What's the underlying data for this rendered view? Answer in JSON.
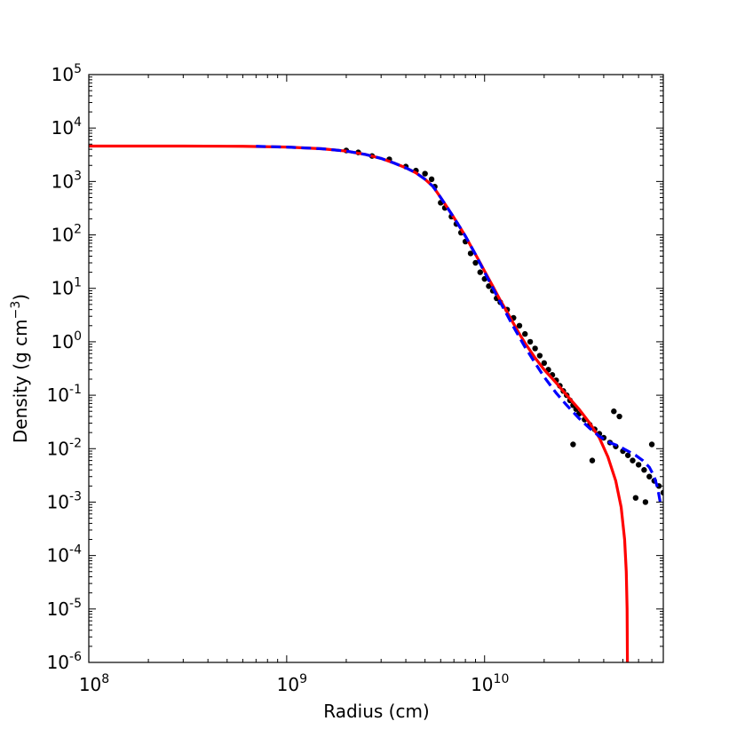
{
  "chart_data": {
    "type": "scatter",
    "xlabel": "Radius (cm)",
    "ylabel": "Density (g cm",
    "ylabel_exponent": "−3",
    "ylabel_suffix": ")",
    "x_scale": "log",
    "y_scale": "log",
    "xlim": [
      100000000.0,
      80000000000.0
    ],
    "ylim": [
      1e-06,
      100000.0
    ],
    "grid": false,
    "x_ticks": [
      {
        "value": 100000000.0,
        "base": "10",
        "exp": "8"
      },
      {
        "value": 1000000000.0,
        "base": "10",
        "exp": "9"
      },
      {
        "value": 10000000000.0,
        "base": "10",
        "exp": "10"
      }
    ],
    "y_ticks": [
      {
        "value": 1e-06,
        "base": "10",
        "exp": "-6"
      },
      {
        "value": 1e-05,
        "base": "10",
        "exp": "-5"
      },
      {
        "value": 0.0001,
        "base": "10",
        "exp": "-4"
      },
      {
        "value": 0.001,
        "base": "10",
        "exp": "-3"
      },
      {
        "value": 0.01,
        "base": "10",
        "exp": "-2"
      },
      {
        "value": 0.1,
        "base": "10",
        "exp": "-1"
      },
      {
        "value": 1.0,
        "base": "10",
        "exp": "0"
      },
      {
        "value": 10.0,
        "base": "10",
        "exp": "1"
      },
      {
        "value": 100.0,
        "base": "10",
        "exp": "2"
      },
      {
        "value": 1000.0,
        "base": "10",
        "exp": "3"
      },
      {
        "value": 10000.0,
        "base": "10",
        "exp": "4"
      },
      {
        "value": 100000.0,
        "base": "10",
        "exp": "5"
      }
    ],
    "series": [
      {
        "style": "scatter",
        "color": "#000000",
        "points": [
          [
            2000000000.0,
            3800.0
          ],
          [
            2300000000.0,
            3500.0
          ],
          [
            2700000000.0,
            3000.0
          ],
          [
            3300000000.0,
            2600.0
          ],
          [
            4000000000.0,
            1900.0
          ],
          [
            4500000000.0,
            1600.0
          ],
          [
            5000000000.0,
            1400.0
          ],
          [
            5400000000.0,
            1100.0
          ],
          [
            5600000000.0,
            800.0
          ],
          [
            6000000000.0,
            400.0
          ],
          [
            6300000000.0,
            320.0
          ],
          [
            6800000000.0,
            220.0
          ],
          [
            7200000000.0,
            160.0
          ],
          [
            7600000000.0,
            110.0
          ],
          [
            8000000000.0,
            75.0
          ],
          [
            8500000000.0,
            45.0
          ],
          [
            9000000000.0,
            30.0
          ],
          [
            9500000000.0,
            20.0
          ],
          [
            10000000000.0,
            15.0
          ],
          [
            10500000000.0,
            11.0
          ],
          [
            11000000000.0,
            9.0
          ],
          [
            11500000000.0,
            6.5
          ],
          [
            12000000000.0,
            5.5
          ],
          [
            13000000000.0,
            4.0
          ],
          [
            14000000000.0,
            2.8
          ],
          [
            15000000000.0,
            2.0
          ],
          [
            16000000000.0,
            1.4
          ],
          [
            17000000000.0,
            1.0
          ],
          [
            18000000000.0,
            0.75
          ],
          [
            19000000000.0,
            0.55
          ],
          [
            20000000000.0,
            0.4
          ],
          [
            21000000000.0,
            0.3
          ],
          [
            22000000000.0,
            0.24
          ],
          [
            23000000000.0,
            0.19
          ],
          [
            24000000000.0,
            0.15
          ],
          [
            25000000000.0,
            0.12
          ],
          [
            26000000000.0,
            0.1
          ],
          [
            27000000000.0,
            0.08
          ],
          [
            28000000000.0,
            0.065
          ],
          [
            29000000000.0,
            0.055
          ],
          [
            30000000000.0,
            0.045
          ],
          [
            32000000000.0,
            0.035
          ],
          [
            34000000000.0,
            0.028
          ],
          [
            36000000000.0,
            0.023
          ],
          [
            38000000000.0,
            0.019
          ],
          [
            40000000000.0,
            0.016
          ],
          [
            43000000000.0,
            0.013
          ],
          [
            46000000000.0,
            0.011
          ],
          [
            50000000000.0,
            0.009
          ],
          [
            53000000000.0,
            0.0075
          ],
          [
            56000000000.0,
            0.006
          ],
          [
            60000000000.0,
            0.005
          ],
          [
            64000000000.0,
            0.004
          ],
          [
            68000000000.0,
            0.003
          ],
          [
            72000000000.0,
            0.0025
          ],
          [
            76000000000.0,
            0.002
          ],
          [
            80000000000.0,
            0.0015
          ],
          [
            45000000000.0,
            0.05
          ],
          [
            48000000000.0,
            0.04
          ],
          [
            35000000000.0,
            0.006
          ],
          [
            28000000000.0,
            0.012
          ],
          [
            65000000000.0,
            0.001
          ],
          [
            58000000000.0,
            0.0012
          ],
          [
            70000000000.0,
            0.012
          ]
        ]
      },
      {
        "style": "line",
        "color": "#ff0000",
        "dash": "solid",
        "points": [
          [
            100000000.0,
            4600.0
          ],
          [
            300000000.0,
            4600.0
          ],
          [
            600000000.0,
            4550.0
          ],
          [
            1000000000.0,
            4400.0
          ],
          [
            1500000000.0,
            4100.0
          ],
          [
            2000000000.0,
            3700.0
          ],
          [
            2500000000.0,
            3200.0
          ],
          [
            3000000000.0,
            2700.0
          ],
          [
            3500000000.0,
            2200.0
          ],
          [
            4000000000.0,
            1800.0
          ],
          [
            4500000000.0,
            1450.0
          ],
          [
            5000000000.0,
            1100.0
          ],
          [
            5500000000.0,
            800.0
          ],
          [
            6000000000.0,
            500.0
          ],
          [
            6500000000.0,
            320.0
          ],
          [
            7000000000.0,
            210.0
          ],
          [
            7500000000.0,
            140.0
          ],
          [
            8000000000.0,
            95.0
          ],
          [
            8500000000.0,
            63.0
          ],
          [
            9000000000.0,
            43.0
          ],
          [
            9500000000.0,
            30.0
          ],
          [
            10000000000.0,
            21.0
          ],
          [
            11000000000.0,
            11.0
          ],
          [
            12000000000.0,
            6.0
          ],
          [
            13000000000.0,
            3.6
          ],
          [
            14000000000.0,
            2.2
          ],
          [
            15000000000.0,
            1.4
          ],
          [
            16000000000.0,
            0.95
          ],
          [
            18000000000.0,
            0.5
          ],
          [
            20000000000.0,
            0.3
          ],
          [
            23000000000.0,
            0.17
          ],
          [
            26000000000.0,
            0.1
          ],
          [
            30000000000.0,
            0.055
          ],
          [
            34000000000.0,
            0.03
          ],
          [
            38000000000.0,
            0.016
          ],
          [
            42000000000.0,
            0.007
          ],
          [
            46000000000.0,
            0.0025
          ],
          [
            49000000000.0,
            0.0008
          ],
          [
            51000000000.0,
            0.0002
          ],
          [
            52000000000.0,
            5e-05
          ],
          [
            52500000000.0,
            1e-05
          ],
          [
            52700000000.0,
            1e-06
          ]
        ]
      },
      {
        "style": "line",
        "color": "#0000ff",
        "dash": "dashed",
        "points": [
          [
            700000000.0,
            4550.0
          ],
          [
            1000000000.0,
            4400.0
          ],
          [
            1500000000.0,
            4100.0
          ],
          [
            2000000000.0,
            3700.0
          ],
          [
            2500000000.0,
            3200.0
          ],
          [
            3000000000.0,
            2700.0
          ],
          [
            3500000000.0,
            2200.0
          ],
          [
            4000000000.0,
            1800.0
          ],
          [
            4500000000.0,
            1450.0
          ],
          [
            5000000000.0,
            1100.0
          ],
          [
            5500000000.0,
            800.0
          ],
          [
            6000000000.0,
            500.0
          ],
          [
            6500000000.0,
            320.0
          ],
          [
            7000000000.0,
            210.0
          ],
          [
            7500000000.0,
            140.0
          ],
          [
            8000000000.0,
            95.0
          ],
          [
            9000000000.0,
            43.0
          ],
          [
            10000000000.0,
            20.0
          ],
          [
            12000000000.0,
            5.5
          ],
          [
            14000000000.0,
            1.9
          ],
          [
            16000000000.0,
            0.8
          ],
          [
            18000000000.0,
            0.4
          ],
          [
            20000000000.0,
            0.22
          ],
          [
            23000000000.0,
            0.11
          ],
          [
            26000000000.0,
            0.065
          ],
          [
            30000000000.0,
            0.037
          ],
          [
            34000000000.0,
            0.024
          ],
          [
            38000000000.0,
            0.017
          ],
          [
            43000000000.0,
            0.013
          ],
          [
            48000000000.0,
            0.011
          ],
          [
            53000000000.0,
            0.009
          ],
          [
            58000000000.0,
            0.0075
          ],
          [
            63000000000.0,
            0.006
          ],
          [
            68000000000.0,
            0.0045
          ],
          [
            72000000000.0,
            0.003
          ],
          [
            75000000000.0,
            0.0018
          ],
          [
            78000000000.0,
            0.0008
          ]
        ]
      }
    ]
  }
}
